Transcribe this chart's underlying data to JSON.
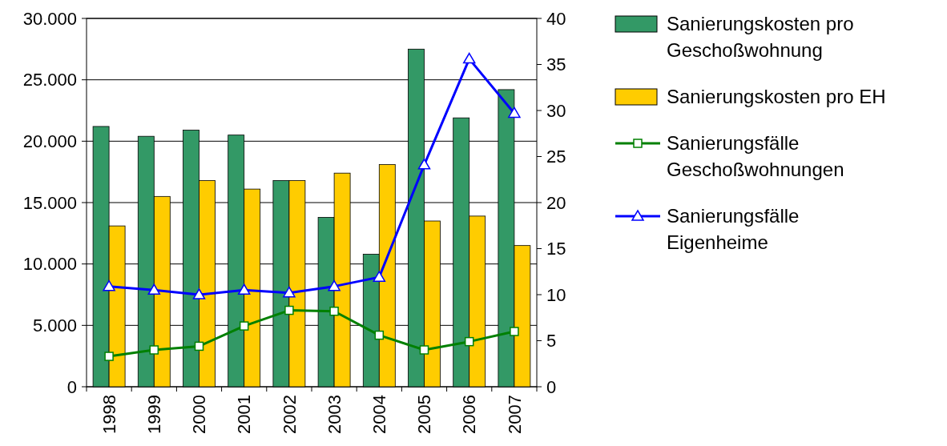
{
  "chart_data": {
    "type": "bar",
    "categories": [
      "1998",
      "1999",
      "2000",
      "2001",
      "2002",
      "2003",
      "2004",
      "2005",
      "2006",
      "2007"
    ],
    "series": [
      {
        "name": "Sanierungskosten pro Geschoßwohnung",
        "color": "#339966",
        "values": [
          21200,
          20400,
          20900,
          20500,
          16800,
          13800,
          10800,
          27500,
          21900,
          24200
        ]
      },
      {
        "name": "Sanierungskosten pro EH",
        "color": "#ffcc00",
        "values": [
          13100,
          15500,
          16800,
          16100,
          16800,
          17400,
          18100,
          13500,
          13900,
          11500
        ]
      },
      {
        "name": "Sanierungsfälle Geschoßwohnungen",
        "type": "line",
        "axis": "y2",
        "marker": "square",
        "color": "#008000",
        "values": [
          3.3,
          4.0,
          4.4,
          6.6,
          8.3,
          8.2,
          5.6,
          4.0,
          4.9,
          6.0
        ]
      },
      {
        "name": "Sanierungsfälle Eigenheime",
        "type": "line",
        "axis": "y2",
        "marker": "triangle",
        "color": "#0000ff",
        "values": [
          10.9,
          10.5,
          10.0,
          10.5,
          10.2,
          10.9,
          11.9,
          24.1,
          35.6,
          29.7
        ]
      }
    ],
    "ylim": [
      0,
      30000
    ],
    "yticks": [
      {
        "value": 0,
        "label": "0"
      },
      {
        "value": 5000,
        "label": "5.000"
      },
      {
        "value": 10000,
        "label": "10.000"
      },
      {
        "value": 15000,
        "label": "15.000"
      },
      {
        "value": 20000,
        "label": "20.000"
      },
      {
        "value": 25000,
        "label": "25.000"
      },
      {
        "value": 30000,
        "label": "30.000"
      }
    ],
    "y2lim": [
      0,
      40
    ],
    "y2ticks": [
      0,
      5,
      10,
      15,
      20,
      25,
      30,
      35,
      40
    ],
    "grid": "y",
    "legend": "right"
  }
}
